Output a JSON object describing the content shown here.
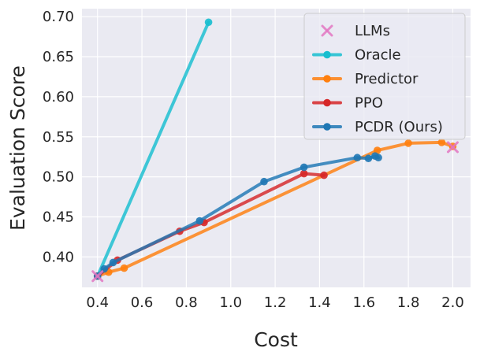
{
  "chart_data": {
    "type": "line",
    "title": "",
    "xlabel": "Cost",
    "ylabel": "Evaluation Score",
    "xlim": [
      0.33,
      2.08
    ],
    "ylim": [
      0.362,
      0.71
    ],
    "xticks": [
      "0.4",
      "0.6",
      "0.8",
      "1.0",
      "1.2",
      "1.4",
      "1.6",
      "1.8",
      "2.0"
    ],
    "yticks": [
      "0.40",
      "0.45",
      "0.50",
      "0.55",
      "0.60",
      "0.65",
      "0.70"
    ],
    "grid": true,
    "legend_position": "top-right",
    "llms": {
      "name": "LLMs",
      "color": "#e377c2",
      "points": [
        {
          "x": 0.4,
          "y": 0.376
        },
        {
          "x": 2.0,
          "y": 0.537
        }
      ]
    },
    "series": [
      {
        "name": "Oracle",
        "color": "#17becf",
        "points": [
          {
            "x": 0.4,
            "y": 0.376
          },
          {
            "x": 0.9,
            "y": 0.693
          }
        ]
      },
      {
        "name": "Predictor",
        "color": "#ff7f0e",
        "points": [
          {
            "x": 0.4,
            "y": 0.376
          },
          {
            "x": 0.45,
            "y": 0.381
          },
          {
            "x": 0.52,
            "y": 0.386
          },
          {
            "x": 1.66,
            "y": 0.533
          },
          {
            "x": 1.8,
            "y": 0.542
          },
          {
            "x": 1.95,
            "y": 0.543
          },
          {
            "x": 2.0,
            "y": 0.538
          }
        ]
      },
      {
        "name": "PPO",
        "color": "#d62728",
        "points": [
          {
            "x": 0.4,
            "y": 0.376
          },
          {
            "x": 0.49,
            "y": 0.396
          },
          {
            "x": 0.77,
            "y": 0.432
          },
          {
            "x": 0.88,
            "y": 0.443
          },
          {
            "x": 1.33,
            "y": 0.504
          },
          {
            "x": 1.42,
            "y": 0.502
          }
        ]
      },
      {
        "name": "PCDR (Ours)",
        "color": "#1f77b4",
        "points": [
          {
            "x": 0.4,
            "y": 0.376
          },
          {
            "x": 0.43,
            "y": 0.385
          },
          {
            "x": 0.47,
            "y": 0.393
          },
          {
            "x": 0.86,
            "y": 0.445
          },
          {
            "x": 1.15,
            "y": 0.494
          },
          {
            "x": 1.33,
            "y": 0.512
          },
          {
            "x": 1.57,
            "y": 0.524
          },
          {
            "x": 1.62,
            "y": 0.523
          },
          {
            "x": 1.65,
            "y": 0.526
          },
          {
            "x": 1.665,
            "y": 0.524
          }
        ]
      }
    ]
  }
}
